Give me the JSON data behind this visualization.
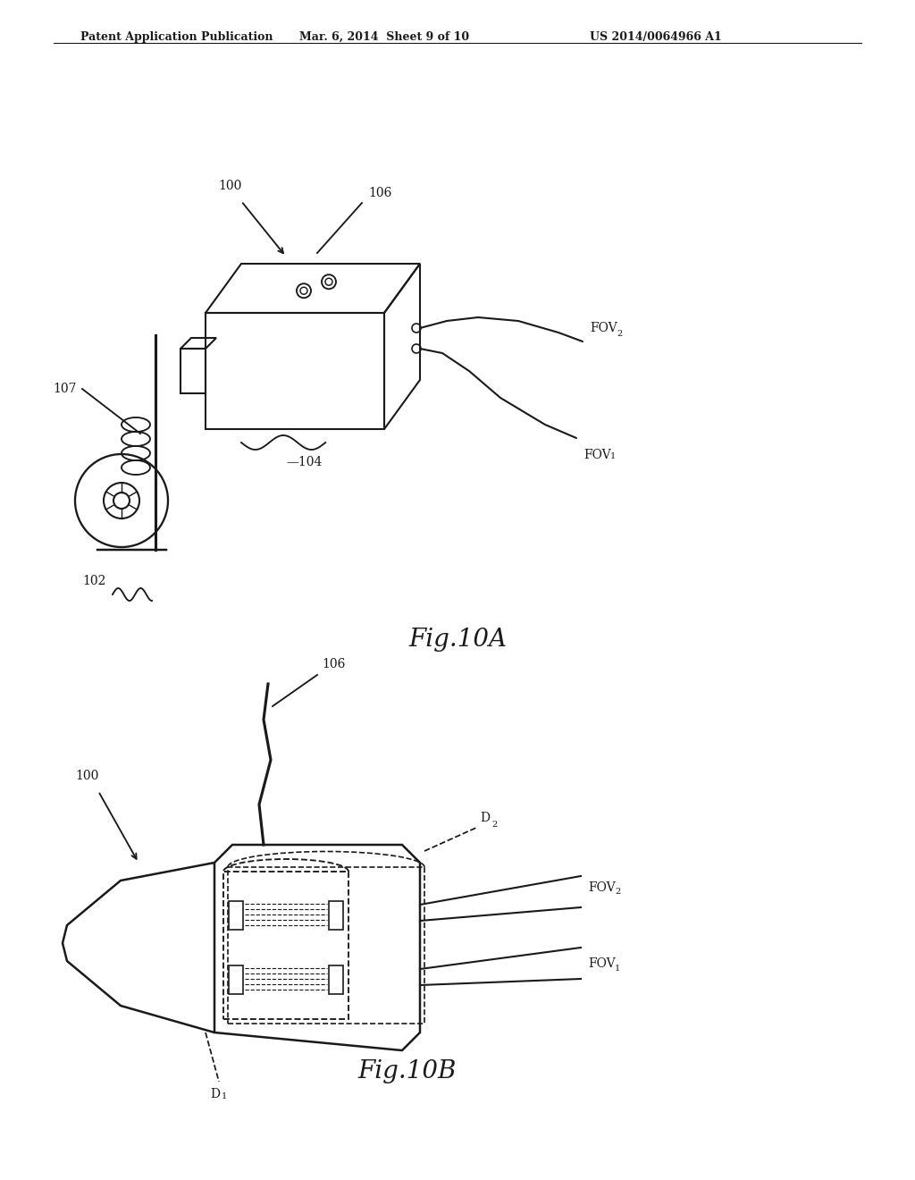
{
  "header_left": "Patent Application Publication",
  "header_mid": "Mar. 6, 2014  Sheet 9 of 10",
  "header_right": "US 2014/0064966 A1",
  "fig_a_caption": "Fig.10A",
  "fig_b_caption": "Fig.10B",
  "bg_color": "#ffffff",
  "line_color": "#1a1a1a",
  "header_fontsize": 9,
  "caption_fontsize": 20,
  "label_fontsize": 10
}
